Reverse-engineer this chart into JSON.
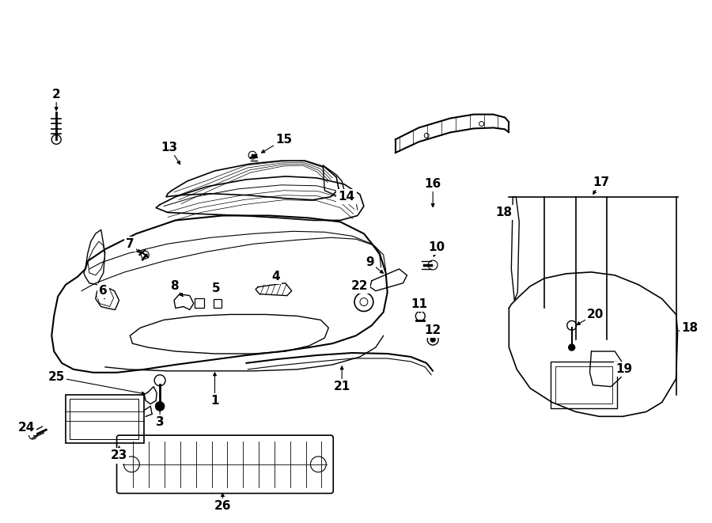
{
  "bg_color": "#ffffff",
  "line_color": "#000000",
  "fig_width": 9.0,
  "fig_height": 6.61,
  "lw": 1.0
}
